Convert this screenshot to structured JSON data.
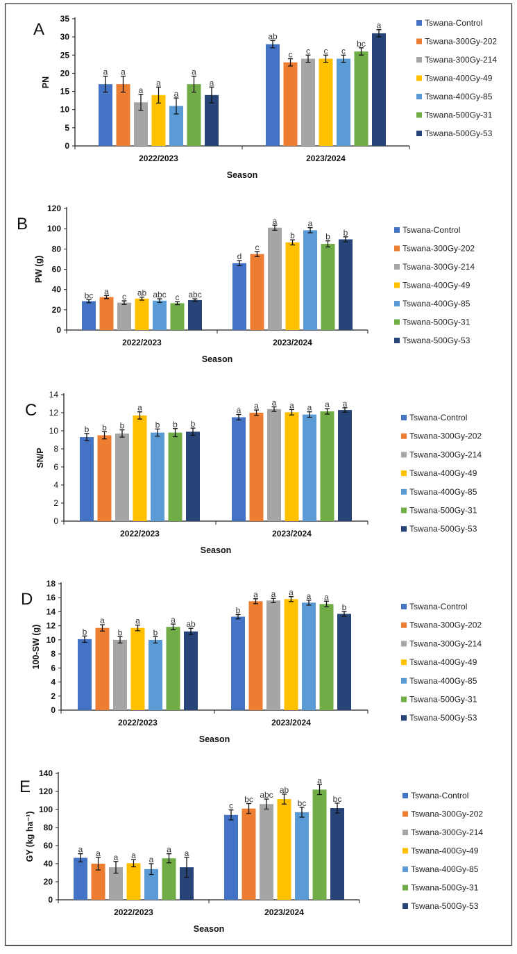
{
  "chart_data": {
    "type": "bar",
    "categories": [
      "2022/2023",
      "2023/2024"
    ],
    "xlabel": "Season",
    "legend_position": "right",
    "series_names": [
      "Tswana-Control",
      "Tswana-300Gy-202",
      "Tswana-300Gy-214",
      "Tswana-400Gy-49",
      "Tswana-400Gy-85",
      "Tswana-500Gy-31",
      "Tswana-500Gy-53"
    ],
    "series_colors": [
      "#4472C4",
      "#ED7D31",
      "#A5A5A5",
      "#FFC000",
      "#5B9BD5",
      "#70AD47",
      "#264478"
    ],
    "panels": [
      {
        "label": "A",
        "ylabel": "PN",
        "ylim": [
          0,
          35
        ],
        "yticks": [
          0,
          5,
          10,
          15,
          20,
          25,
          30,
          35
        ],
        "values": [
          [
            17,
            17,
            12,
            14,
            11,
            17,
            14
          ],
          [
            28,
            23,
            24,
            24,
            24,
            26,
            31
          ]
        ],
        "errors": [
          [
            2.2,
            2.2,
            2.2,
            2.2,
            2.2,
            2.2,
            2.2
          ],
          [
            1,
            1,
            1,
            1,
            1,
            1,
            1
          ]
        ],
        "letters": [
          [
            "a",
            "a",
            "a",
            "a",
            "a",
            "a",
            "a"
          ],
          [
            "ab",
            "c",
            "c",
            "c",
            "c",
            "bc",
            "a"
          ]
        ]
      },
      {
        "label": "B",
        "ylabel": "PW (g)",
        "ylim": [
          0,
          120
        ],
        "yticks": [
          0,
          20,
          40,
          60,
          80,
          100,
          120
        ],
        "values": [
          [
            28.5,
            32.5,
            27,
            31,
            29,
            26.5,
            29.5
          ],
          [
            66,
            75,
            101,
            86.5,
            98.5,
            85,
            89.5
          ]
        ],
        "errors": [
          [
            1.5,
            1.5,
            1.8,
            1.5,
            1.8,
            1.5,
            1.3
          ],
          [
            2.5,
            2.5,
            2.5,
            2.5,
            2.5,
            3,
            2.5
          ]
        ],
        "letters": [
          [
            "bc",
            "a",
            "c",
            "ab",
            "abc",
            "c",
            "abc"
          ],
          [
            "d",
            "c",
            "a",
            "b",
            "a",
            "b",
            "b"
          ]
        ]
      },
      {
        "label": "C",
        "ylabel": "SN/P",
        "ylim": [
          0,
          14
        ],
        "yticks": [
          0,
          2,
          4,
          6,
          8,
          10,
          12,
          14
        ],
        "values": [
          [
            9.3,
            9.5,
            9.7,
            11.7,
            9.8,
            9.8,
            9.9
          ],
          [
            11.5,
            12,
            12.4,
            12.05,
            11.8,
            12.15,
            12.3
          ]
        ],
        "errors": [
          [
            0.4,
            0.4,
            0.4,
            0.4,
            0.4,
            0.45,
            0.4
          ],
          [
            0.3,
            0.3,
            0.25,
            0.3,
            0.3,
            0.3,
            0.25
          ]
        ],
        "letters": [
          [
            "b",
            "b",
            "b",
            "a",
            "b",
            "b",
            "b"
          ],
          [
            "a",
            "a",
            "a",
            "a",
            "a",
            "a",
            "a"
          ]
        ]
      },
      {
        "label": "D",
        "ylabel": "100-SW (g)",
        "ylim": [
          0,
          18
        ],
        "yticks": [
          0,
          2,
          4,
          6,
          8,
          10,
          12,
          14,
          16,
          18
        ],
        "values": [
          [
            10.1,
            11.7,
            10,
            11.7,
            10,
            11.85,
            11.2
          ],
          [
            13.3,
            15.5,
            15.6,
            15.8,
            15.3,
            15.1,
            13.7
          ]
        ],
        "errors": [
          [
            0.45,
            0.45,
            0.45,
            0.4,
            0.45,
            0.4,
            0.45
          ],
          [
            0.3,
            0.35,
            0.3,
            0.35,
            0.35,
            0.4,
            0.35
          ]
        ],
        "letters": [
          [
            "b",
            "a",
            "b",
            "a",
            "b",
            "a",
            "ab"
          ],
          [
            "b",
            "a",
            "a",
            "a",
            "a",
            "a",
            "b"
          ]
        ]
      },
      {
        "label": "E",
        "ylabel": "GY (kg ha⁻¹)",
        "ylim": [
          0,
          140
        ],
        "yticks": [
          0,
          20,
          40,
          60,
          80,
          100,
          120,
          140
        ],
        "values": [
          [
            46.5,
            40,
            36,
            40.5,
            34,
            46,
            36
          ],
          [
            94,
            101,
            106,
            111.5,
            97,
            122,
            101.5
          ]
        ],
        "errors": [
          [
            4.5,
            7,
            6.5,
            4,
            6,
            5,
            11
          ],
          [
            5.5,
            5.5,
            5.5,
            5.5,
            5.5,
            5.5,
            5.5
          ]
        ],
        "letters": [
          [
            "a",
            "a",
            "a",
            "a",
            "a",
            "a",
            "a"
          ],
          [
            "c",
            "bc",
            "abc",
            "ab",
            "bc",
            "a",
            "bc"
          ]
        ]
      }
    ]
  }
}
